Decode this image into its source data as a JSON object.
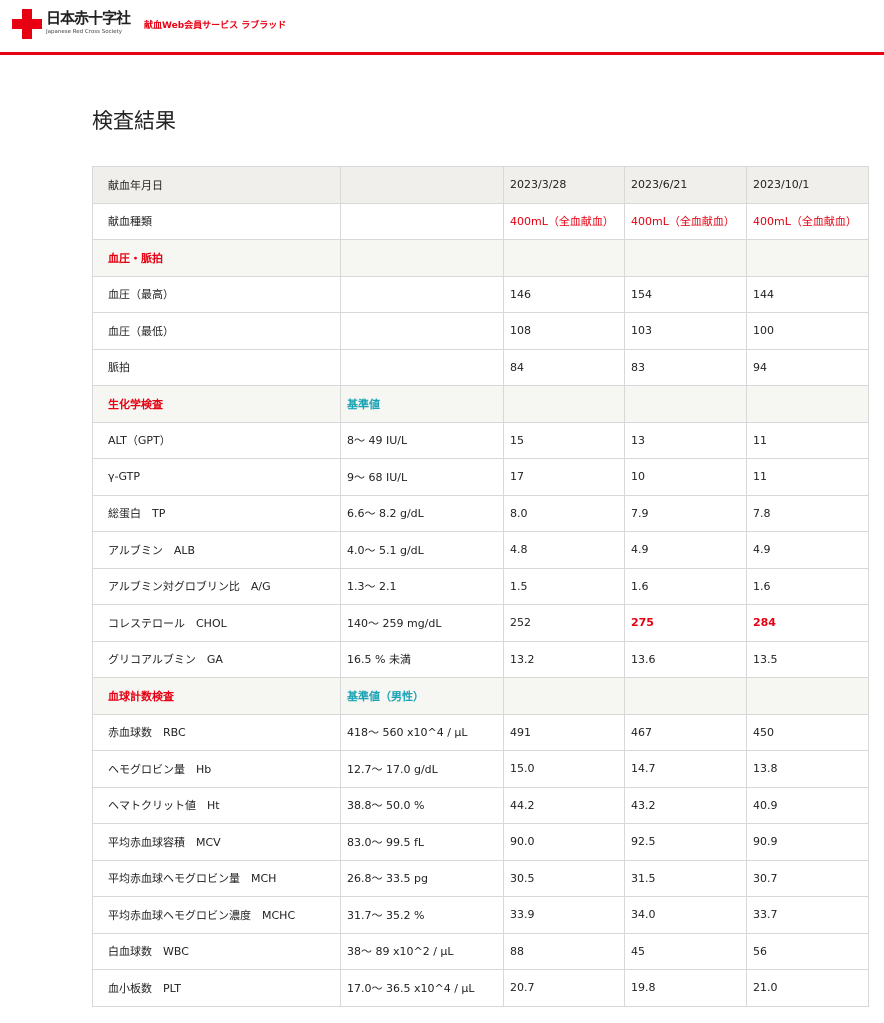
{
  "header": {
    "logo_jp": "日本赤十字社",
    "logo_en": "Japanese Red Cross Society",
    "service": "献血Web会員サービス ラブラッド"
  },
  "page_title": "検査結果",
  "colors": {
    "brand": "#e60012",
    "reference_label": "#1aa3b5"
  },
  "table": {
    "date_label": "献血年月日",
    "dates": [
      "2023/3/28",
      "2023/6/21",
      "2023/10/1"
    ],
    "type_label": "献血種類",
    "types": [
      "400mL（全血献血）",
      "400mL（全血献血）",
      "400mL（全血献血）"
    ],
    "sections": [
      {
        "title": "血圧・脈拍",
        "ref_label": "",
        "rows": [
          {
            "name": "血圧（最高）",
            "ref": "",
            "values": [
              "146",
              "154",
              "144"
            ],
            "flagged": [
              false,
              false,
              false
            ]
          },
          {
            "name": "血圧（最低）",
            "ref": "",
            "values": [
              "108",
              "103",
              "100"
            ],
            "flagged": [
              false,
              false,
              false
            ]
          },
          {
            "name": "脈拍",
            "ref": "",
            "values": [
              "84",
              "83",
              "94"
            ],
            "flagged": [
              false,
              false,
              false
            ]
          }
        ]
      },
      {
        "title": "生化学検査",
        "ref_label": "基準値",
        "rows": [
          {
            "name": "ALT（GPT）",
            "ref": "8〜 49 IU/L",
            "values": [
              "15",
              "13",
              "11"
            ],
            "flagged": [
              false,
              false,
              false
            ]
          },
          {
            "name": "γ-GTP",
            "ref": "9〜 68 IU/L",
            "values": [
              "17",
              "10",
              "11"
            ],
            "flagged": [
              false,
              false,
              false
            ]
          },
          {
            "name": "総蛋白　TP",
            "ref": "6.6〜 8.2 g/dL",
            "values": [
              "8.0",
              "7.9",
              "7.8"
            ],
            "flagged": [
              false,
              false,
              false
            ]
          },
          {
            "name": "アルブミン　ALB",
            "ref": "4.0〜 5.1 g/dL",
            "values": [
              "4.8",
              "4.9",
              "4.9"
            ],
            "flagged": [
              false,
              false,
              false
            ]
          },
          {
            "name": "アルブミン対グロブリン比　A/G",
            "ref": "1.3〜 2.1",
            "values": [
              "1.5",
              "1.6",
              "1.6"
            ],
            "flagged": [
              false,
              false,
              false
            ]
          },
          {
            "name": "コレステロール　CHOL",
            "ref": "140〜 259 mg/dL",
            "values": [
              "252",
              "275",
              "284"
            ],
            "flagged": [
              false,
              true,
              true
            ]
          },
          {
            "name": "グリコアルブミン　GA",
            "ref": "16.5 % 未満",
            "values": [
              "13.2",
              "13.6",
              "13.5"
            ],
            "flagged": [
              false,
              false,
              false
            ]
          }
        ]
      },
      {
        "title": "血球計数検査",
        "ref_label": "基準値（男性）",
        "rows": [
          {
            "name": "赤血球数　RBC",
            "ref": "418〜 560 x10^4 / μL",
            "values": [
              "491",
              "467",
              "450"
            ],
            "flagged": [
              false,
              false,
              false
            ]
          },
          {
            "name": "ヘモグロビン量　Hb",
            "ref": "12.7〜 17.0 g/dL",
            "values": [
              "15.0",
              "14.7",
              "13.8"
            ],
            "flagged": [
              false,
              false,
              false
            ]
          },
          {
            "name": "ヘマトクリット値　Ht",
            "ref": "38.8〜 50.0 %",
            "values": [
              "44.2",
              "43.2",
              "40.9"
            ],
            "flagged": [
              false,
              false,
              false
            ]
          },
          {
            "name": "平均赤血球容積　MCV",
            "ref": "83.0〜 99.5 fL",
            "values": [
              "90.0",
              "92.5",
              "90.9"
            ],
            "flagged": [
              false,
              false,
              false
            ]
          },
          {
            "name": "平均赤血球ヘモグロビン量　MCH",
            "ref": "26.8〜 33.5 pg",
            "values": [
              "30.5",
              "31.5",
              "30.7"
            ],
            "flagged": [
              false,
              false,
              false
            ]
          },
          {
            "name": "平均赤血球ヘモグロビン濃度　MCHC",
            "ref": "31.7〜 35.2 %",
            "values": [
              "33.9",
              "34.0",
              "33.7"
            ],
            "flagged": [
              false,
              false,
              false
            ]
          },
          {
            "name": "白血球数　WBC",
            "ref": "38〜 89 x10^2 / μL",
            "values": [
              "88",
              "45",
              "56"
            ],
            "flagged": [
              false,
              false,
              false
            ]
          },
          {
            "name": "血小板数　PLT",
            "ref": "17.0〜 36.5 x10^4 / μL",
            "values": [
              "20.7",
              "19.8",
              "21.0"
            ],
            "flagged": [
              false,
              false,
              false
            ]
          }
        ]
      }
    ]
  }
}
